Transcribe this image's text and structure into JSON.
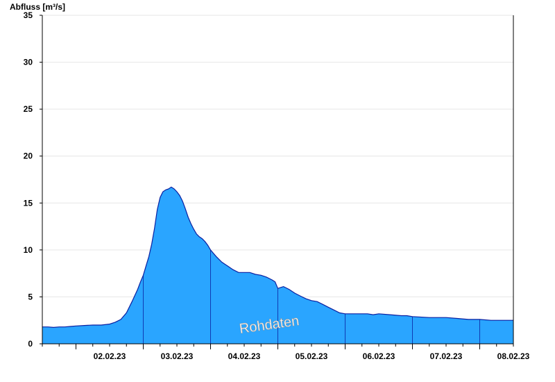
{
  "chart_data": {
    "type": "area",
    "title": "",
    "ylabel": "Abfluss [m³/s]",
    "xlabel": "",
    "ylim": [
      0,
      35
    ],
    "yticks": [
      0,
      5,
      10,
      15,
      20,
      25,
      30,
      35
    ],
    "xlim": [
      "01.02.23 12:00",
      "08.02.23 12:00"
    ],
    "day_starts": [
      "02.02.23",
      "03.02.23",
      "04.02.23",
      "05.02.23",
      "06.02.23",
      "07.02.23",
      "08.02.23"
    ],
    "xtick_labels": [
      "02.02.23",
      "03.02.23",
      "04.02.23",
      "05.02.23",
      "06.02.23",
      "07.02.23",
      "08.02.23"
    ],
    "grid": true,
    "annotation": "Rohdaten",
    "colors": {
      "fill": "#2aa5ff",
      "outline": "#0a1fa0",
      "grid": "#e6e6e6",
      "axis": "#000000"
    },
    "series": [
      {
        "x": [
          "01.02.23 12:00",
          "01.02.23 14:00",
          "01.02.23 16:00",
          "01.02.23 18:00",
          "01.02.23 20:00",
          "01.02.23 22:00",
          "02.02.23 00:00",
          "02.02.23 03:00",
          "02.02.23 06:00",
          "02.02.23 09:00",
          "02.02.23 12:00",
          "02.02.23 14:00",
          "02.02.23 16:00",
          "02.02.23 18:00",
          "02.02.23 20:00",
          "02.02.23 22:00",
          "02.02.23 23:00",
          "03.02.23 00:00",
          "03.02.23 01:00",
          "03.02.23 02:00",
          "03.02.23 03:00",
          "03.02.23 04:00",
          "03.02.23 05:00",
          "03.02.23 06:00",
          "03.02.23 07:00",
          "03.02.23 08:00",
          "03.02.23 09:00",
          "03.02.23 10:00",
          "03.02.23 11:00",
          "03.02.23 12:00",
          "03.02.23 13:00",
          "03.02.23 14:00",
          "03.02.23 15:00",
          "03.02.23 16:00",
          "03.02.23 17:00",
          "03.02.23 18:00",
          "03.02.23 19:00",
          "03.02.23 20:00",
          "03.02.23 21:00",
          "03.02.23 22:00",
          "03.02.23 23:00",
          "04.02.23 00:00",
          "04.02.23 02:00",
          "04.02.23 04:00",
          "04.02.23 06:00",
          "04.02.23 08:00",
          "04.02.23 10:00",
          "04.02.23 12:00",
          "04.02.23 14:00",
          "04.02.23 16:00",
          "04.02.23 18:00",
          "04.02.23 20:00",
          "04.02.23 22:00",
          "04.02.23 23:00",
          "05.02.23 00:00",
          "05.02.23 01:00",
          "05.02.23 02:00",
          "05.02.23 04:00",
          "05.02.23 06:00",
          "05.02.23 08:00",
          "05.02.23 10:00",
          "05.02.23 12:00",
          "05.02.23 14:00",
          "05.02.23 16:00",
          "05.02.23 18:00",
          "05.02.23 20:00",
          "05.02.23 22:00",
          "06.02.23 00:00",
          "06.02.23 04:00",
          "06.02.23 08:00",
          "06.02.23 10:00",
          "06.02.23 12:00",
          "06.02.23 16:00",
          "06.02.23 20:00",
          "06.02.23 22:00",
          "07.02.23 00:00",
          "07.02.23 06:00",
          "07.02.23 12:00",
          "07.02.23 16:00",
          "07.02.23 20:00",
          "08.02.23 00:00",
          "08.02.23 04:00",
          "08.02.23 08:00",
          "08.02.23 12:00"
        ],
        "y": [
          1.8,
          1.8,
          1.75,
          1.8,
          1.8,
          1.85,
          1.9,
          1.95,
          2.0,
          2.0,
          2.1,
          2.3,
          2.6,
          3.3,
          4.5,
          5.8,
          6.6,
          7.3,
          8.3,
          9.3,
          10.6,
          12.3,
          14.3,
          15.6,
          16.2,
          16.4,
          16.5,
          16.7,
          16.5,
          16.2,
          15.8,
          15.2,
          14.4,
          13.5,
          12.8,
          12.2,
          11.7,
          11.4,
          11.2,
          10.9,
          10.5,
          10.0,
          9.3,
          8.7,
          8.3,
          7.9,
          7.6,
          7.6,
          7.6,
          7.4,
          7.3,
          7.1,
          6.8,
          6.6,
          5.9,
          6.0,
          6.1,
          5.8,
          5.4,
          5.1,
          4.8,
          4.6,
          4.5,
          4.2,
          3.9,
          3.6,
          3.3,
          3.2,
          3.2,
          3.2,
          3.1,
          3.2,
          3.1,
          3.0,
          3.0,
          2.9,
          2.8,
          2.8,
          2.7,
          2.6,
          2.6,
          2.5,
          2.5,
          2.5
        ]
      }
    ]
  }
}
